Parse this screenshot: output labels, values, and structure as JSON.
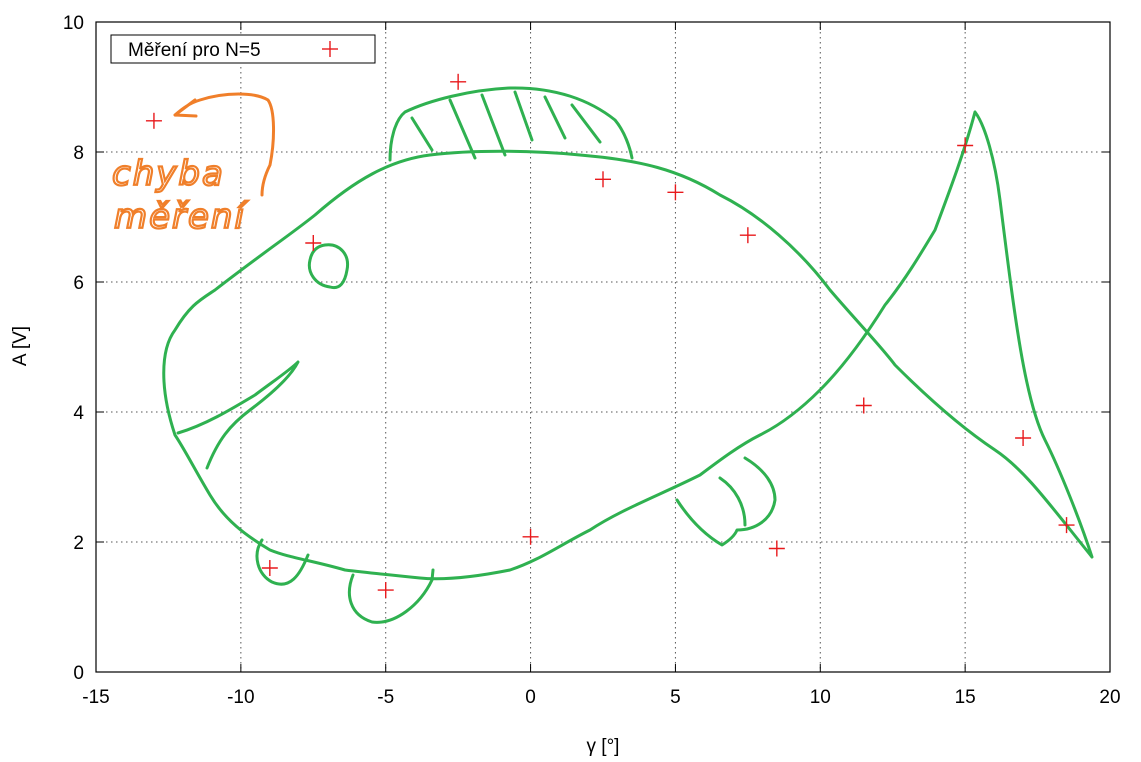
{
  "chart_data": {
    "type": "scatter",
    "xlabel": "γ [°]",
    "ylabel": "A [V]",
    "xlim": [
      -15,
      20
    ],
    "ylim": [
      0,
      10
    ],
    "x_ticks": [
      -15,
      -10,
      -5,
      0,
      5,
      10,
      15,
      20
    ],
    "y_ticks": [
      0,
      2,
      4,
      6,
      8,
      10
    ],
    "grid": true,
    "legend_position": "top-left",
    "series": [
      {
        "name": "Měření pro N=5",
        "marker": "plus",
        "color": "#e8191c",
        "points": [
          {
            "x": -13,
            "y": 8.48
          },
          {
            "x": -9,
            "y": 1.6
          },
          {
            "x": -7.5,
            "y": 6.6
          },
          {
            "x": -5,
            "y": 1.26
          },
          {
            "x": -2.5,
            "y": 9.08
          },
          {
            "x": 0,
            "y": 2.08
          },
          {
            "x": 2.5,
            "y": 7.58
          },
          {
            "x": 5,
            "y": 7.38
          },
          {
            "x": 7.5,
            "y": 6.72
          },
          {
            "x": 8.5,
            "y": 1.9
          },
          {
            "x": 11.5,
            "y": 4.1
          },
          {
            "x": 15,
            "y": 8.1
          },
          {
            "x": 17,
            "y": 3.6
          },
          {
            "x": 18.5,
            "y": 2.26
          }
        ]
      }
    ],
    "annotations": [
      {
        "text": "chyba\nměření",
        "color": "#f07f2a"
      }
    ],
    "drawing_color": "#2fb150"
  }
}
